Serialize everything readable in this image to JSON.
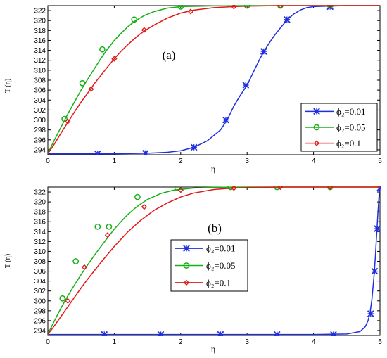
{
  "figure": {
    "domain": "Chart"
  },
  "colors": {
    "blue": "#1f2fe0",
    "green": "#16b016",
    "red": "#e01818"
  },
  "chart_data": [
    {
      "type": "line",
      "panel_label": "(a)",
      "xlabel": "η",
      "ylabel": "T (η)",
      "xlim": [
        0,
        5
      ],
      "ylim": [
        293,
        323
      ],
      "x_ticks": [
        "0",
        "1",
        "2",
        "3",
        "4",
        "5"
      ],
      "y_ticks": [
        "294",
        "296",
        "298",
        "300",
        "302",
        "304",
        "306",
        "308",
        "310",
        "312",
        "314",
        "316",
        "318",
        "320",
        "322"
      ],
      "legend_position": "lower-right",
      "series": [
        {
          "name": "ϕ₂=0.01",
          "color": "#1f2fe0",
          "marker": "x",
          "x": [
            0,
            0.5,
            1,
            1.5,
            1.8,
            2.0,
            2.2,
            2.4,
            2.6,
            2.7,
            2.8,
            2.9,
            3.0,
            3.1,
            3.2,
            3.3,
            3.4,
            3.5,
            3.6,
            3.7,
            3.8,
            3.9,
            4.0,
            4.2,
            4.5,
            5.0
          ],
          "y": [
            293.2,
            293.2,
            293.2,
            293.3,
            293.5,
            293.8,
            294.5,
            295.8,
            298.0,
            300.0,
            302.8,
            305.0,
            307.0,
            309.8,
            312.5,
            314.8,
            316.8,
            318.5,
            320.1,
            321.3,
            322.1,
            322.6,
            322.8,
            322.9,
            323.0,
            323.0
          ],
          "markers_x": [
            0.75,
            1.47,
            2.2,
            2.68,
            2.98,
            3.25,
            3.6,
            4.25
          ],
          "markers_y": [
            293.2,
            293.3,
            294.5,
            300.0,
            307.0,
            313.8,
            320.2,
            322.8
          ]
        },
        {
          "name": "ϕ₂=0.05",
          "color": "#16b016",
          "marker": "o",
          "x": [
            0,
            0.1,
            0.2,
            0.3,
            0.4,
            0.5,
            0.6,
            0.7,
            0.8,
            0.9,
            1.0,
            1.1,
            1.2,
            1.3,
            1.45,
            1.6,
            1.8,
            2.0,
            2.5,
            3.0,
            4.0,
            5.0
          ],
          "y": [
            293.3,
            296.0,
            298.6,
            301.2,
            303.6,
            306.0,
            308.2,
            310.3,
            312.4,
            314.3,
            316.0,
            317.4,
            318.7,
            319.8,
            321.0,
            321.8,
            322.5,
            322.8,
            322.95,
            323.0,
            323.0,
            323.0
          ],
          "markers_x": [
            0.25,
            0.52,
            0.82,
            1.3,
            2.0,
            3.0,
            3.5,
            4.25
          ],
          "markers_y": [
            300.2,
            307.4,
            314.2,
            320.2,
            322.8,
            323.0,
            323.0,
            323.0
          ]
        },
        {
          "name": "ϕ₂=0.1",
          "color": "#e01818",
          "marker": "d",
          "x": [
            0,
            0.1,
            0.2,
            0.3,
            0.4,
            0.5,
            0.6,
            0.7,
            0.8,
            0.9,
            1.0,
            1.1,
            1.2,
            1.3,
            1.4,
            1.5,
            1.6,
            1.8,
            2.0,
            2.2,
            2.5,
            2.8,
            3.0,
            3.5,
            4.0,
            5.0
          ],
          "y": [
            293.2,
            295.2,
            297.4,
            299.5,
            301.6,
            303.6,
            305.4,
            307.3,
            309.0,
            310.7,
            312.3,
            313.8,
            315.1,
            316.3,
            317.4,
            318.3,
            319.1,
            320.5,
            321.5,
            322.1,
            322.6,
            322.8,
            322.9,
            323.0,
            323.0,
            323.0
          ],
          "markers_x": [
            0.3,
            0.65,
            1.0,
            1.45,
            2.15,
            2.8,
            3.5,
            4.25
          ],
          "markers_y": [
            299.7,
            306.2,
            312.3,
            318.1,
            321.8,
            322.8,
            323.0,
            323.0
          ]
        }
      ]
    },
    {
      "type": "line",
      "panel_label": "(b)",
      "xlabel": "η",
      "ylabel": "T (η)",
      "xlim": [
        0,
        5
      ],
      "ylim": [
        293,
        323
      ],
      "x_ticks": [
        "0",
        "1",
        "2",
        "3",
        "4",
        "5"
      ],
      "y_ticks": [
        "294",
        "296",
        "298",
        "300",
        "302",
        "304",
        "306",
        "308",
        "310",
        "312",
        "314",
        "316",
        "318",
        "320",
        "322"
      ],
      "legend_position": "center-left",
      "series": [
        {
          "name": "ϕ₂=0.01",
          "color": "#1f2fe0",
          "marker": "x",
          "x": [
            0,
            1,
            2,
            3,
            4,
            4.5,
            4.7,
            4.78,
            4.82,
            4.85,
            4.88,
            4.91,
            4.93,
            4.95,
            4.97,
            4.99,
            5.0
          ],
          "y": [
            293.2,
            293.2,
            293.2,
            293.2,
            293.2,
            293.3,
            293.8,
            294.8,
            296.0,
            297.5,
            300.5,
            305.0,
            308.8,
            313.5,
            318.0,
            322.0,
            323.0
          ],
          "markers_x": [
            0.85,
            1.7,
            2.6,
            3.45,
            4.3,
            4.86,
            4.92,
            4.96,
            5.0
          ],
          "markers_y": [
            293.2,
            293.2,
            293.2,
            293.2,
            293.2,
            297.4,
            306.0,
            314.6,
            322.8
          ]
        },
        {
          "name": "ϕ₂=0.05",
          "color": "#16b016",
          "marker": "o",
          "x": [
            0,
            0.1,
            0.2,
            0.3,
            0.4,
            0.5,
            0.6,
            0.7,
            0.8,
            0.9,
            1.0,
            1.1,
            1.2,
            1.3,
            1.4,
            1.5,
            1.7,
            1.9,
            2.2,
            2.5,
            3.0,
            4.0,
            5.0
          ],
          "y": [
            293.3,
            296.0,
            298.6,
            301.0,
            303.2,
            305.3,
            307.3,
            309.2,
            311.0,
            312.8,
            314.5,
            316.0,
            317.4,
            318.6,
            319.6,
            320.5,
            321.7,
            322.4,
            322.8,
            322.95,
            323.0,
            323.0,
            323.0
          ],
          "markers_x": [
            0.22,
            0.42,
            0.75,
            0.92,
            1.35,
            1.95,
            2.75,
            3.45,
            4.25
          ],
          "markers_y": [
            300.5,
            308.0,
            315.0,
            315.0,
            321.0,
            322.8,
            323.0,
            323.0,
            323.0
          ]
        },
        {
          "name": "ϕ₂=0.1",
          "color": "#e01818",
          "marker": "d",
          "x": [
            0,
            0.1,
            0.2,
            0.3,
            0.4,
            0.5,
            0.6,
            0.7,
            0.8,
            0.9,
            1.0,
            1.2,
            1.4,
            1.6,
            1.8,
            2.0,
            2.2,
            2.5,
            2.8,
            3.0,
            3.5,
            4.0,
            5.0
          ],
          "y": [
            293.2,
            295.0,
            296.9,
            298.8,
            300.7,
            302.6,
            304.4,
            306.1,
            307.8,
            309.4,
            311.0,
            313.9,
            316.3,
            318.3,
            319.8,
            321.0,
            321.8,
            322.5,
            322.8,
            322.9,
            323.0,
            323.0,
            323.0
          ],
          "markers_x": [
            0.3,
            0.55,
            0.9,
            1.45,
            2.0,
            2.8,
            3.5,
            4.25
          ],
          "markers_y": [
            300.0,
            306.8,
            313.3,
            319.0,
            322.4,
            322.8,
            323.0,
            323.0
          ]
        }
      ]
    }
  ]
}
